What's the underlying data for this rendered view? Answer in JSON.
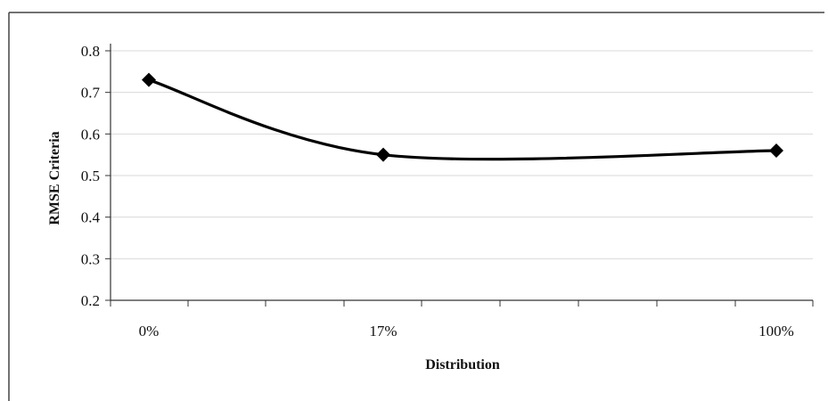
{
  "chart_data": {
    "type": "line",
    "categories": [
      "0%",
      "17%",
      "100%"
    ],
    "series": [
      {
        "values": [
          0.73,
          0.55,
          0.56
        ]
      }
    ],
    "xlabel": "Distribution",
    "ylabel": "RMSE Criteria",
    "ylim": [
      0.2,
      0.8
    ],
    "yticks": [
      "0.2",
      "0.3",
      "0.4",
      "0.5",
      "0.6",
      "0.7",
      "0.8"
    ],
    "grid": true,
    "smooth": true,
    "marker": "diamond",
    "line_color": "#000000",
    "grid_color": "#d9d9d9"
  }
}
